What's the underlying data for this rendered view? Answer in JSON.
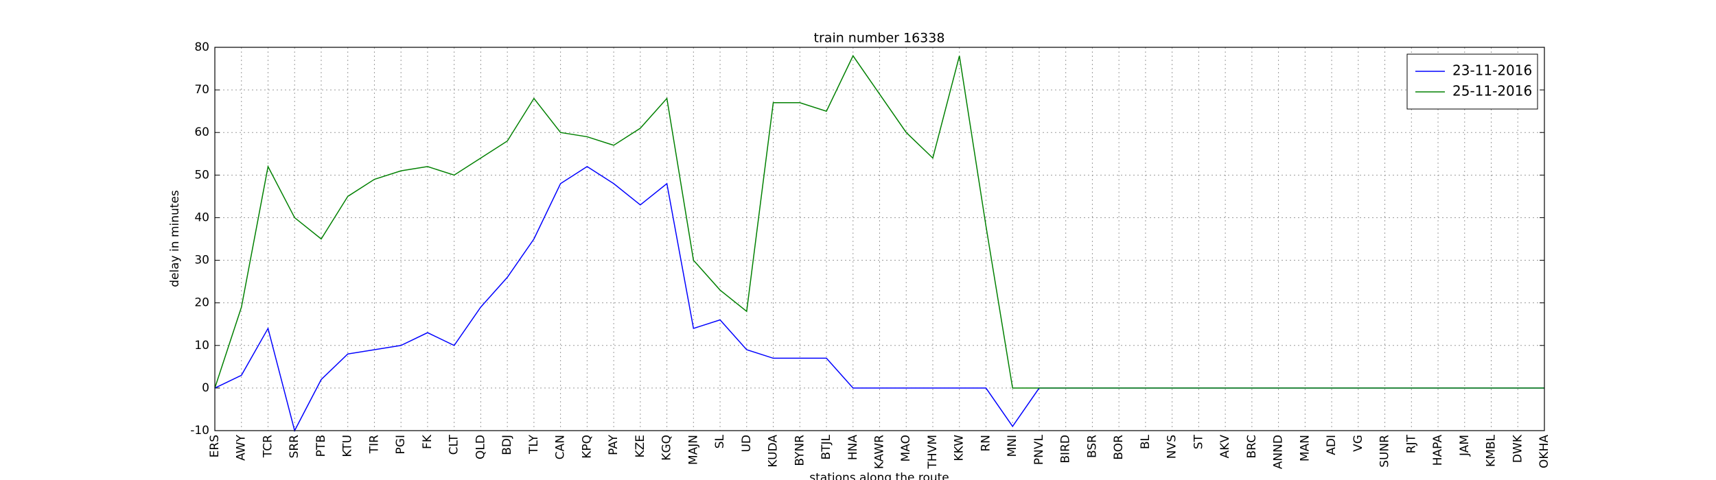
{
  "chart_data": {
    "type": "line",
    "title": "train number 16338",
    "x_label": "stations along the route",
    "y_label": "delay in minutes",
    "categories": [
      "ERS",
      "AWY",
      "TCR",
      "SRR",
      "PTB",
      "KTU",
      "TIR",
      "PGI",
      "FK",
      "CLT",
      "QLD",
      "BDJ",
      "TLY",
      "CAN",
      "KPQ",
      "PAY",
      "KZE",
      "KGQ",
      "MAJN",
      "SL",
      "UD",
      "KUDA",
      "BYNR",
      "BTJL",
      "HNA",
      "KAWR",
      "MAO",
      "THVM",
      "KKW",
      "RN",
      "MNI",
      "PNVL",
      "BIRD",
      "BSR",
      "BOR",
      "BL",
      "NVS",
      "ST",
      "AKV",
      "BRC",
      "ANND",
      "MAN",
      "ADI",
      "VG",
      "SUNR",
      "RJT",
      "HAPA",
      "JAM",
      "KMBL",
      "DWK",
      "OKHA"
    ],
    "series": [
      {
        "name": "23-11-2016",
        "color": "#0000ff",
        "values": [
          0,
          3,
          14,
          -10,
          2,
          8,
          9,
          10,
          13,
          10,
          19,
          26,
          35,
          48,
          52,
          48,
          43,
          48,
          14,
          16,
          9,
          7,
          7,
          7,
          0,
          0,
          0,
          0,
          0,
          0,
          -9,
          0,
          0,
          0,
          0,
          0,
          0,
          0,
          0,
          0,
          0,
          0,
          0,
          0,
          0,
          0,
          0,
          0,
          0,
          0,
          0
        ]
      },
      {
        "name": "25-11-2016",
        "color": "#008000",
        "values": [
          0,
          19,
          52,
          40,
          35,
          45,
          49,
          51,
          52,
          50,
          54,
          58,
          68,
          60,
          59,
          57,
          61,
          68,
          30,
          23,
          18,
          67,
          67,
          65,
          78,
          69,
          60,
          54,
          78,
          38,
          0,
          0,
          0,
          0,
          0,
          0,
          0,
          0,
          0,
          0,
          0,
          0,
          0,
          0,
          0,
          0,
          0,
          0,
          0,
          0,
          0
        ]
      }
    ],
    "ylim": [
      -10,
      80
    ],
    "yticks": [
      -10,
      0,
      10,
      20,
      30,
      40,
      50,
      60,
      70,
      80
    ],
    "grid": true,
    "legend": "upper right"
  }
}
